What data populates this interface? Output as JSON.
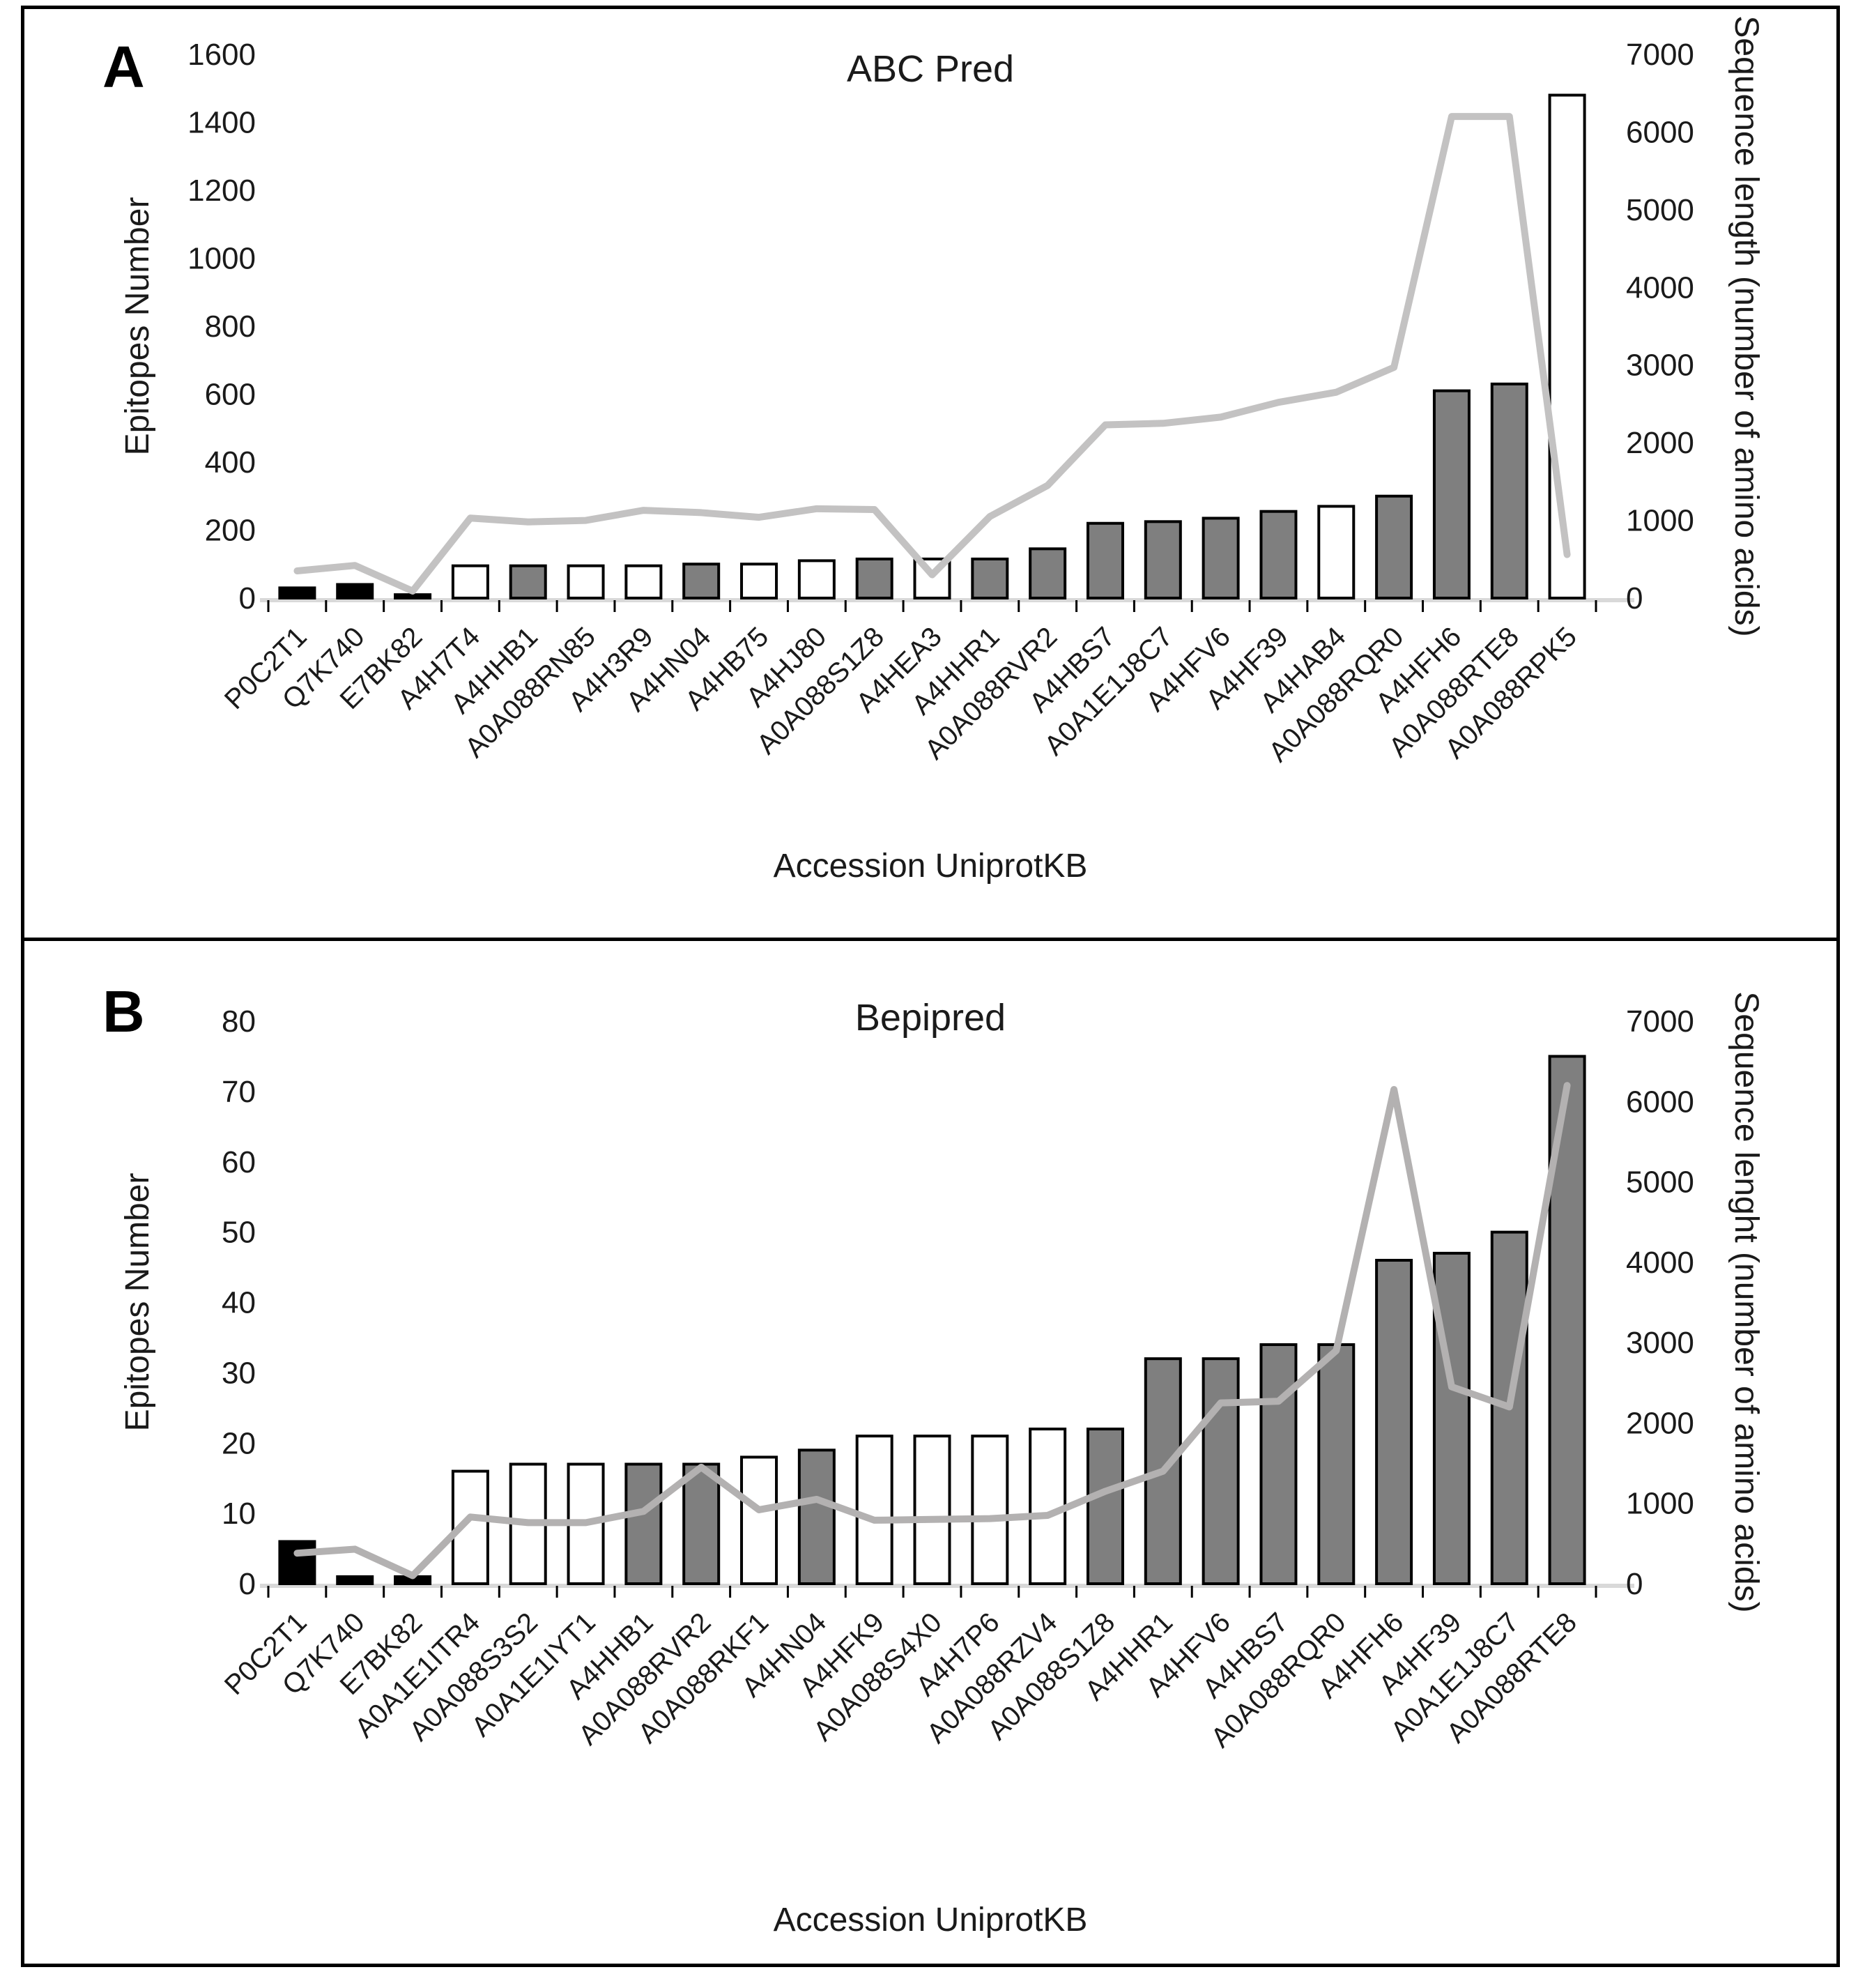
{
  "panels": [
    {
      "corner": "A"
    },
    {
      "corner": "B"
    }
  ],
  "chart_data": [
    {
      "type": "bar",
      "subtype": "bar+line-combo",
      "title": "ABC Pred",
      "xlabel": "Accession UniprotKB",
      "ylabel_left": "Epitopes Number",
      "ylabel_right": "Sequence length (number of amino acids)",
      "ylim_left": [
        0,
        1600
      ],
      "ytick_step_left": 200,
      "ylim_right": [
        0,
        7000
      ],
      "ytick_step_right": 1000,
      "grid": false,
      "legend": "none",
      "categories": [
        "P0C2T1",
        "Q7K740",
        "E7BK82",
        "A4H7T4",
        "A4HHB1",
        "A0A088RN85",
        "A4H3R9",
        "A4HN04",
        "A4HB75",
        "A4HJ80",
        "A0A088S1Z8",
        "A4HEA3",
        "A4HHR1",
        "A0A088RVR2",
        "A4HBS7",
        "A0A1E1J8C7",
        "A4HFV6",
        "A4HF39",
        "A4HAB4",
        "A0A088RQR0",
        "A4HFH6",
        "A0A088RTE8",
        "A0A088RPK5"
      ],
      "series": [
        {
          "name": "Epitopes Number",
          "type": "bar",
          "axis": "left",
          "values": [
            30,
            40,
            10,
            95,
            95,
            95,
            95,
            100,
            100,
            110,
            115,
            115,
            115,
            145,
            220,
            225,
            235,
            255,
            270,
            300,
            610,
            630,
            1480
          ]
        },
        {
          "name": "Sequence length",
          "type": "line",
          "axis": "right",
          "values": [
            350,
            420,
            90,
            1030,
            980,
            1000,
            1130,
            1100,
            1040,
            1150,
            1140,
            300,
            1050,
            1450,
            2230,
            2250,
            2330,
            2520,
            2650,
            2970,
            6200,
            6200,
            560
          ]
        }
      ],
      "bar_styles": [
        "black",
        "black",
        "black",
        "white",
        "gray",
        "white",
        "white",
        "gray",
        "white",
        "white",
        "gray",
        "white",
        "gray",
        "gray",
        "gray",
        "gray",
        "gray",
        "gray",
        "white",
        "gray",
        "gray",
        "gray",
        "white"
      ],
      "colors": {
        "black": "#000000",
        "white": "#ffffff",
        "gray": "#7f7f7f",
        "bar_stroke": "#000000",
        "line": "#c3c2c2",
        "axis_line": "#d9d9d9",
        "tick": "#000000"
      }
    },
    {
      "type": "bar",
      "subtype": "bar+line-combo",
      "title": "Bepipred",
      "xlabel": "Accession UniprotKB",
      "ylabel_left": "Epitopes Number",
      "ylabel_right": "Sequence lenght (number of amino acids)",
      "ylim_left": [
        0,
        80
      ],
      "ytick_step_left": 10,
      "ylim_right": [
        0,
        7000
      ],
      "ytick_step_right": 1000,
      "grid": false,
      "legend": "none",
      "categories": [
        "P0C2T1",
        "Q7K740",
        "E7BK82",
        "A0A1E1ITR4",
        "A0A088S3S2",
        "A0A1E1IYT1",
        "A4HHB1",
        "A0A088RVR2",
        "A0A088RKF1",
        "A4HN04",
        "A4HFK9",
        "A0A088S4X0",
        "A4H7P6",
        "A0A088RZV4",
        "A0A088S1Z8",
        "A4HHR1",
        "A4HFV6",
        "A4HBS7",
        "A0A088RQR0",
        "A4HFH6",
        "A4HF39",
        "A0A1E1J8C7",
        "A0A088RTE8"
      ],
      "series": [
        {
          "name": "Epitopes Number",
          "type": "bar",
          "axis": "left",
          "values": [
            6,
            1,
            1,
            16,
            17,
            17,
            17,
            17,
            18,
            19,
            21,
            21,
            21,
            22,
            22,
            32,
            32,
            34,
            34,
            46,
            47,
            50,
            75
          ]
        },
        {
          "name": "Sequence lenght",
          "type": "line",
          "axis": "right",
          "values": [
            380,
            430,
            100,
            830,
            760,
            760,
            900,
            1450,
            920,
            1050,
            790,
            800,
            810,
            850,
            1150,
            1400,
            2250,
            2270,
            2900,
            6150,
            2450,
            2200,
            6200
          ]
        }
      ],
      "bar_styles": [
        "black",
        "black",
        "black",
        "white",
        "white",
        "white",
        "gray",
        "gray",
        "white",
        "gray",
        "white",
        "white",
        "white",
        "white",
        "gray",
        "gray",
        "gray",
        "gray",
        "gray",
        "gray",
        "gray",
        "gray",
        "gray"
      ],
      "colors": {
        "black": "#000000",
        "white": "#ffffff",
        "gray": "#7f7f7f",
        "bar_stroke": "#000000",
        "line": "#b3b1b1",
        "axis_line": "#d9d9d9",
        "tick": "#000000"
      }
    }
  ]
}
